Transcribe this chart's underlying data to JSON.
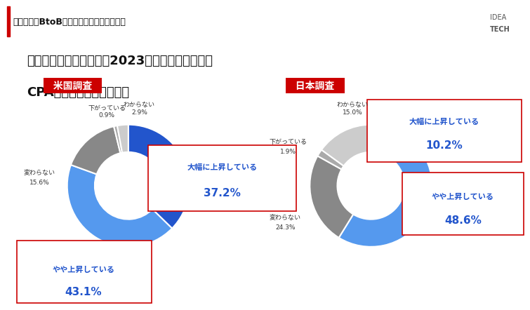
{
  "header_text": "調査概要：BtoB企業の広告施策の実態調査",
  "title_line1": "お勤め先の広告施策では2023年以前と比較して、",
  "title_line2": "CPAは上がっていますか。",
  "chart1_label": "米国調査",
  "chart2_label": "日本調査",
  "us_labels": [
    "大幅に上昇している",
    "やや上昇している",
    "変わらない",
    "下がっている",
    "わからない"
  ],
  "us_values": [
    37.2,
    43.1,
    15.6,
    0.9,
    2.9
  ],
  "us_colors": [
    "#2255cc",
    "#5599ee",
    "#888888",
    "#aaaaaa",
    "#cccccc"
  ],
  "jp_labels": [
    "大幅に上昇している",
    "やや上昇している",
    "変わらない",
    "下がっている",
    "わからない"
  ],
  "jp_values": [
    10.2,
    48.6,
    24.3,
    1.9,
    15.0
  ],
  "jp_colors": [
    "#2255cc",
    "#5599ee",
    "#888888",
    "#aaaaaa",
    "#cccccc"
  ],
  "background_color": "#ffffff",
  "header_bg": "#f0f0f0",
  "header_bar_color": "#cc0000",
  "label_box_color": "#ffffff",
  "label_box_border": "#cc0000",
  "label_text_color": "#2255cc",
  "chart_label_bg": "#cc0000",
  "chart_label_text": "#ffffff"
}
